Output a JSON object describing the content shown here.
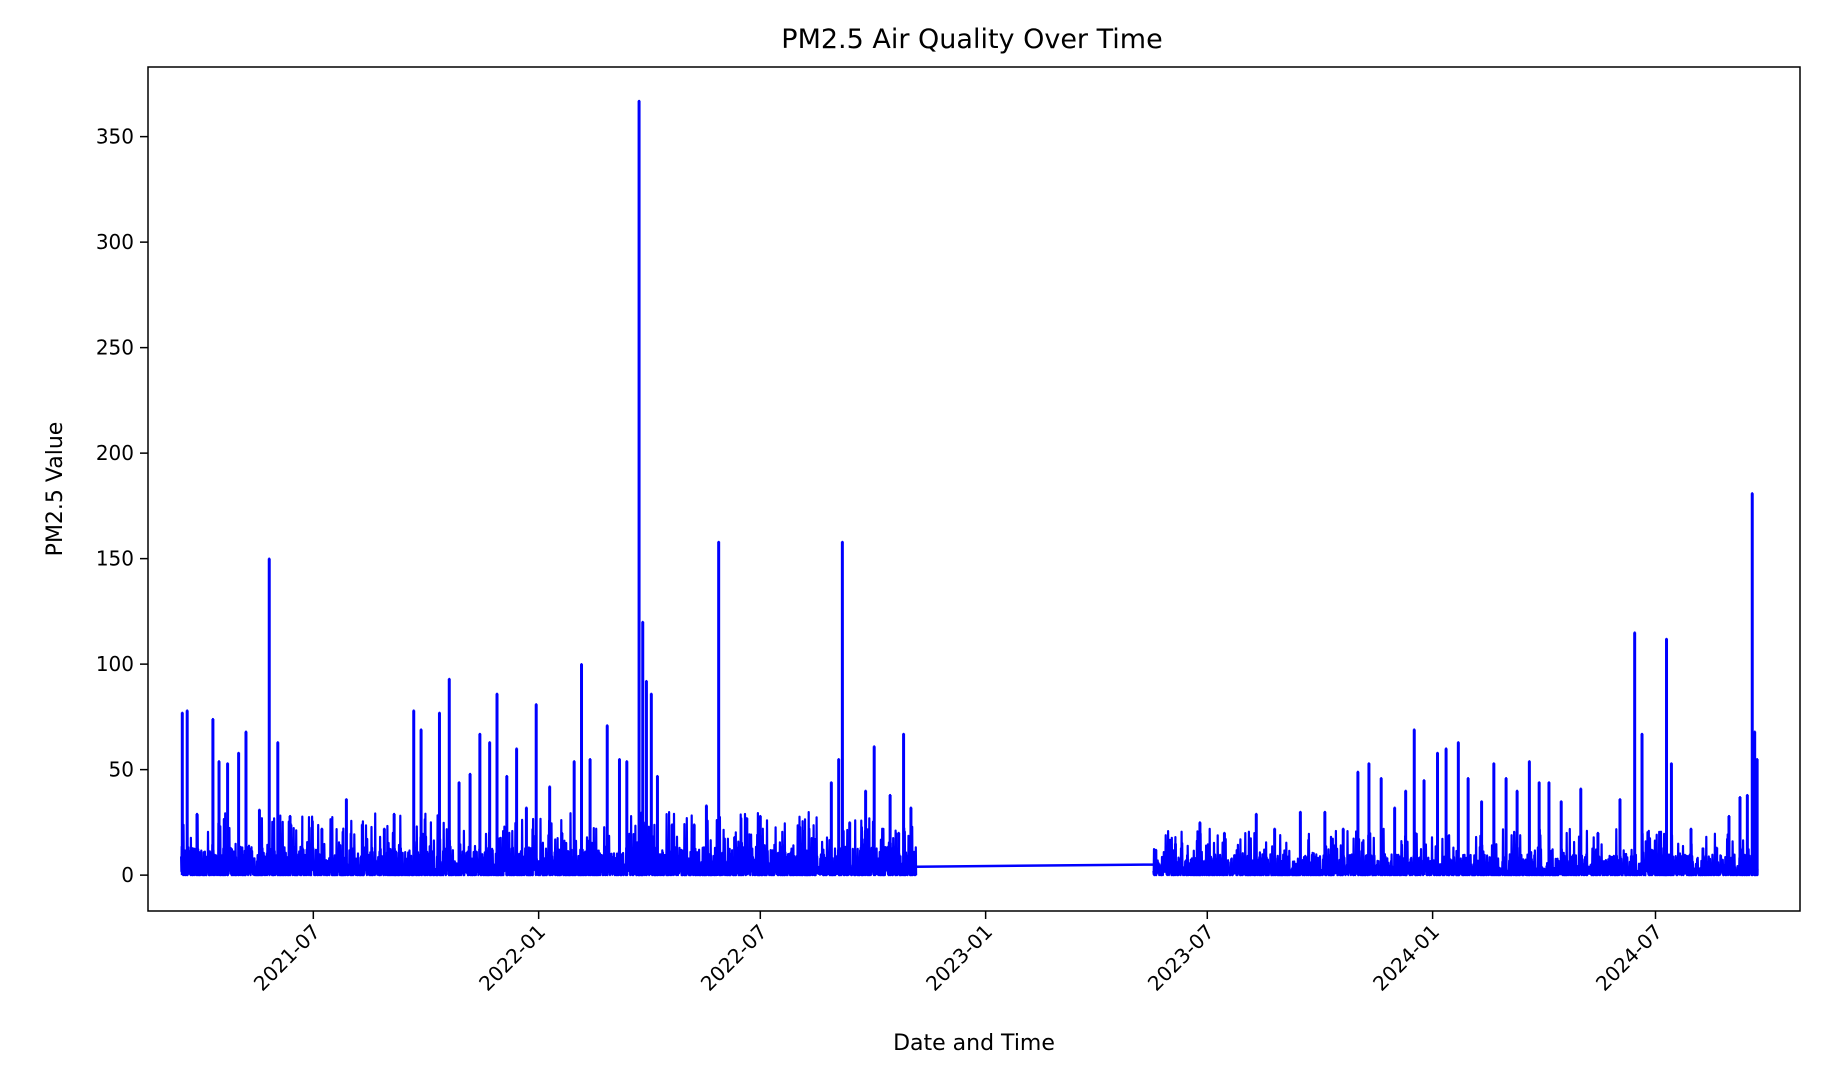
{
  "chart_data": {
    "type": "line",
    "title": "PM2.5 Air Quality Over Time",
    "xlabel": "Date and Time",
    "ylabel": "PM2.5 Value",
    "x_ticks": [
      "2021-07",
      "2022-01",
      "2022-07",
      "2023-01",
      "2023-07",
      "2024-01",
      "2024-07"
    ],
    "x_tick_dates": [
      "2021-07-01",
      "2022-01-01",
      "2022-07-01",
      "2023-01-01",
      "2023-07-01",
      "2024-01-01",
      "2024-07-01"
    ],
    "xlim": [
      "2021-02-16",
      "2024-10-27"
    ],
    "y_ticks": [
      0,
      50,
      100,
      150,
      200,
      250,
      300,
      350
    ],
    "ylim": [
      -17,
      383
    ],
    "grid": false,
    "series": [
      {
        "color": "#0000ff",
        "segments": [
          {
            "start": "2021-03-15",
            "end": "2022-11-05",
            "base_low": 0,
            "base_high": 30,
            "peaks": [
              {
                "x": "2021-03-16",
                "y": 77
              },
              {
                "x": "2021-03-20",
                "y": 78
              },
              {
                "x": "2021-03-28",
                "y": 29
              },
              {
                "x": "2021-04-10",
                "y": 74
              },
              {
                "x": "2021-04-15",
                "y": 54
              },
              {
                "x": "2021-04-22",
                "y": 53
              },
              {
                "x": "2021-05-01",
                "y": 58
              },
              {
                "x": "2021-05-07",
                "y": 68
              },
              {
                "x": "2021-05-18",
                "y": 31
              },
              {
                "x": "2021-05-26",
                "y": 150
              },
              {
                "x": "2021-06-02",
                "y": 63
              },
              {
                "x": "2021-06-12",
                "y": 28
              },
              {
                "x": "2021-06-22",
                "y": 13
              },
              {
                "x": "2021-07-08",
                "y": 22
              },
              {
                "x": "2021-07-28",
                "y": 36
              },
              {
                "x": "2021-08-10",
                "y": 24
              },
              {
                "x": "2021-08-28",
                "y": 22
              },
              {
                "x": "2021-09-05",
                "y": 29
              },
              {
                "x": "2021-09-21",
                "y": 78
              },
              {
                "x": "2021-09-27",
                "y": 69
              },
              {
                "x": "2021-10-12",
                "y": 77
              },
              {
                "x": "2021-10-20",
                "y": 93
              },
              {
                "x": "2021-10-28",
                "y": 44
              },
              {
                "x": "2021-11-06",
                "y": 48
              },
              {
                "x": "2021-11-14",
                "y": 67
              },
              {
                "x": "2021-11-22",
                "y": 63
              },
              {
                "x": "2021-11-28",
                "y": 86
              },
              {
                "x": "2021-12-06",
                "y": 47
              },
              {
                "x": "2021-12-14",
                "y": 60
              },
              {
                "x": "2021-12-22",
                "y": 32
              },
              {
                "x": "2021-12-30",
                "y": 81
              },
              {
                "x": "2022-01-10",
                "y": 42
              },
              {
                "x": "2022-01-20",
                "y": 20
              },
              {
                "x": "2022-01-30",
                "y": 54
              },
              {
                "x": "2022-02-05",
                "y": 100
              },
              {
                "x": "2022-02-12",
                "y": 55
              },
              {
                "x": "2022-02-26",
                "y": 71
              },
              {
                "x": "2022-03-08",
                "y": 55
              },
              {
                "x": "2022-03-14",
                "y": 54
              },
              {
                "x": "2022-03-24",
                "y": 367
              },
              {
                "x": "2022-03-27",
                "y": 120
              },
              {
                "x": "2022-03-30",
                "y": 92
              },
              {
                "x": "2022-04-03",
                "y": 86
              },
              {
                "x": "2022-04-08",
                "y": 47
              },
              {
                "x": "2022-04-20",
                "y": 24
              },
              {
                "x": "2022-05-08",
                "y": 24
              },
              {
                "x": "2022-05-18",
                "y": 33
              },
              {
                "x": "2022-05-28",
                "y": 158
              },
              {
                "x": "2022-06-10",
                "y": 18
              },
              {
                "x": "2022-06-20",
                "y": 27
              },
              {
                "x": "2022-07-01",
                "y": 28
              },
              {
                "x": "2022-07-20",
                "y": 14
              },
              {
                "x": "2022-08-05",
                "y": 21
              },
              {
                "x": "2022-08-28",
                "y": 44
              },
              {
                "x": "2022-09-03",
                "y": 55
              },
              {
                "x": "2022-09-06",
                "y": 158
              },
              {
                "x": "2022-09-12",
                "y": 25
              },
              {
                "x": "2022-09-25",
                "y": 40
              },
              {
                "x": "2022-10-02",
                "y": 61
              },
              {
                "x": "2022-10-15",
                "y": 38
              },
              {
                "x": "2022-10-22",
                "y": 20
              },
              {
                "x": "2022-10-26",
                "y": 67
              },
              {
                "x": "2022-11-01",
                "y": 32
              }
            ]
          },
          {
            "start": "2023-05-18",
            "end": "2024-09-22",
            "base_low": 0,
            "base_high": 22,
            "peaks": [
              {
                "x": "2023-05-20",
                "y": 12
              },
              {
                "x": "2023-06-05",
                "y": 15
              },
              {
                "x": "2023-06-25",
                "y": 25
              },
              {
                "x": "2023-07-15",
                "y": 20
              },
              {
                "x": "2023-08-10",
                "y": 29
              },
              {
                "x": "2023-08-25",
                "y": 22
              },
              {
                "x": "2023-09-15",
                "y": 30
              },
              {
                "x": "2023-10-05",
                "y": 30
              },
              {
                "x": "2023-10-20",
                "y": 22
              },
              {
                "x": "2023-11-01",
                "y": 49
              },
              {
                "x": "2023-11-10",
                "y": 53
              },
              {
                "x": "2023-11-20",
                "y": 46
              },
              {
                "x": "2023-12-01",
                "y": 32
              },
              {
                "x": "2023-12-10",
                "y": 40
              },
              {
                "x": "2023-12-17",
                "y": 69
              },
              {
                "x": "2023-12-25",
                "y": 45
              },
              {
                "x": "2024-01-05",
                "y": 58
              },
              {
                "x": "2024-01-12",
                "y": 60
              },
              {
                "x": "2024-01-22",
                "y": 63
              },
              {
                "x": "2024-01-30",
                "y": 46
              },
              {
                "x": "2024-02-10",
                "y": 35
              },
              {
                "x": "2024-02-20",
                "y": 53
              },
              {
                "x": "2024-03-01",
                "y": 46
              },
              {
                "x": "2024-03-10",
                "y": 40
              },
              {
                "x": "2024-03-20",
                "y": 54
              },
              {
                "x": "2024-03-28",
                "y": 44
              },
              {
                "x": "2024-04-05",
                "y": 44
              },
              {
                "x": "2024-04-15",
                "y": 35
              },
              {
                "x": "2024-05-01",
                "y": 41
              },
              {
                "x": "2024-05-15",
                "y": 20
              },
              {
                "x": "2024-06-02",
                "y": 36
              },
              {
                "x": "2024-06-14",
                "y": 115
              },
              {
                "x": "2024-06-20",
                "y": 67
              },
              {
                "x": "2024-06-28",
                "y": 12
              },
              {
                "x": "2024-07-10",
                "y": 112
              },
              {
                "x": "2024-07-14",
                "y": 53
              },
              {
                "x": "2024-07-30",
                "y": 22
              },
              {
                "x": "2024-08-20",
                "y": 13
              },
              {
                "x": "2024-08-30",
                "y": 28
              },
              {
                "x": "2024-09-08",
                "y": 37
              },
              {
                "x": "2024-09-14",
                "y": 38
              },
              {
                "x": "2024-09-18",
                "y": 181
              },
              {
                "x": "2024-09-20",
                "y": 68
              },
              {
                "x": "2024-09-22",
                "y": 55
              }
            ]
          }
        ],
        "gap": {
          "from": {
            "x": "2022-11-05",
            "y": 4
          },
          "to": {
            "x": "2023-05-18",
            "y": 5
          }
        }
      }
    ]
  }
}
